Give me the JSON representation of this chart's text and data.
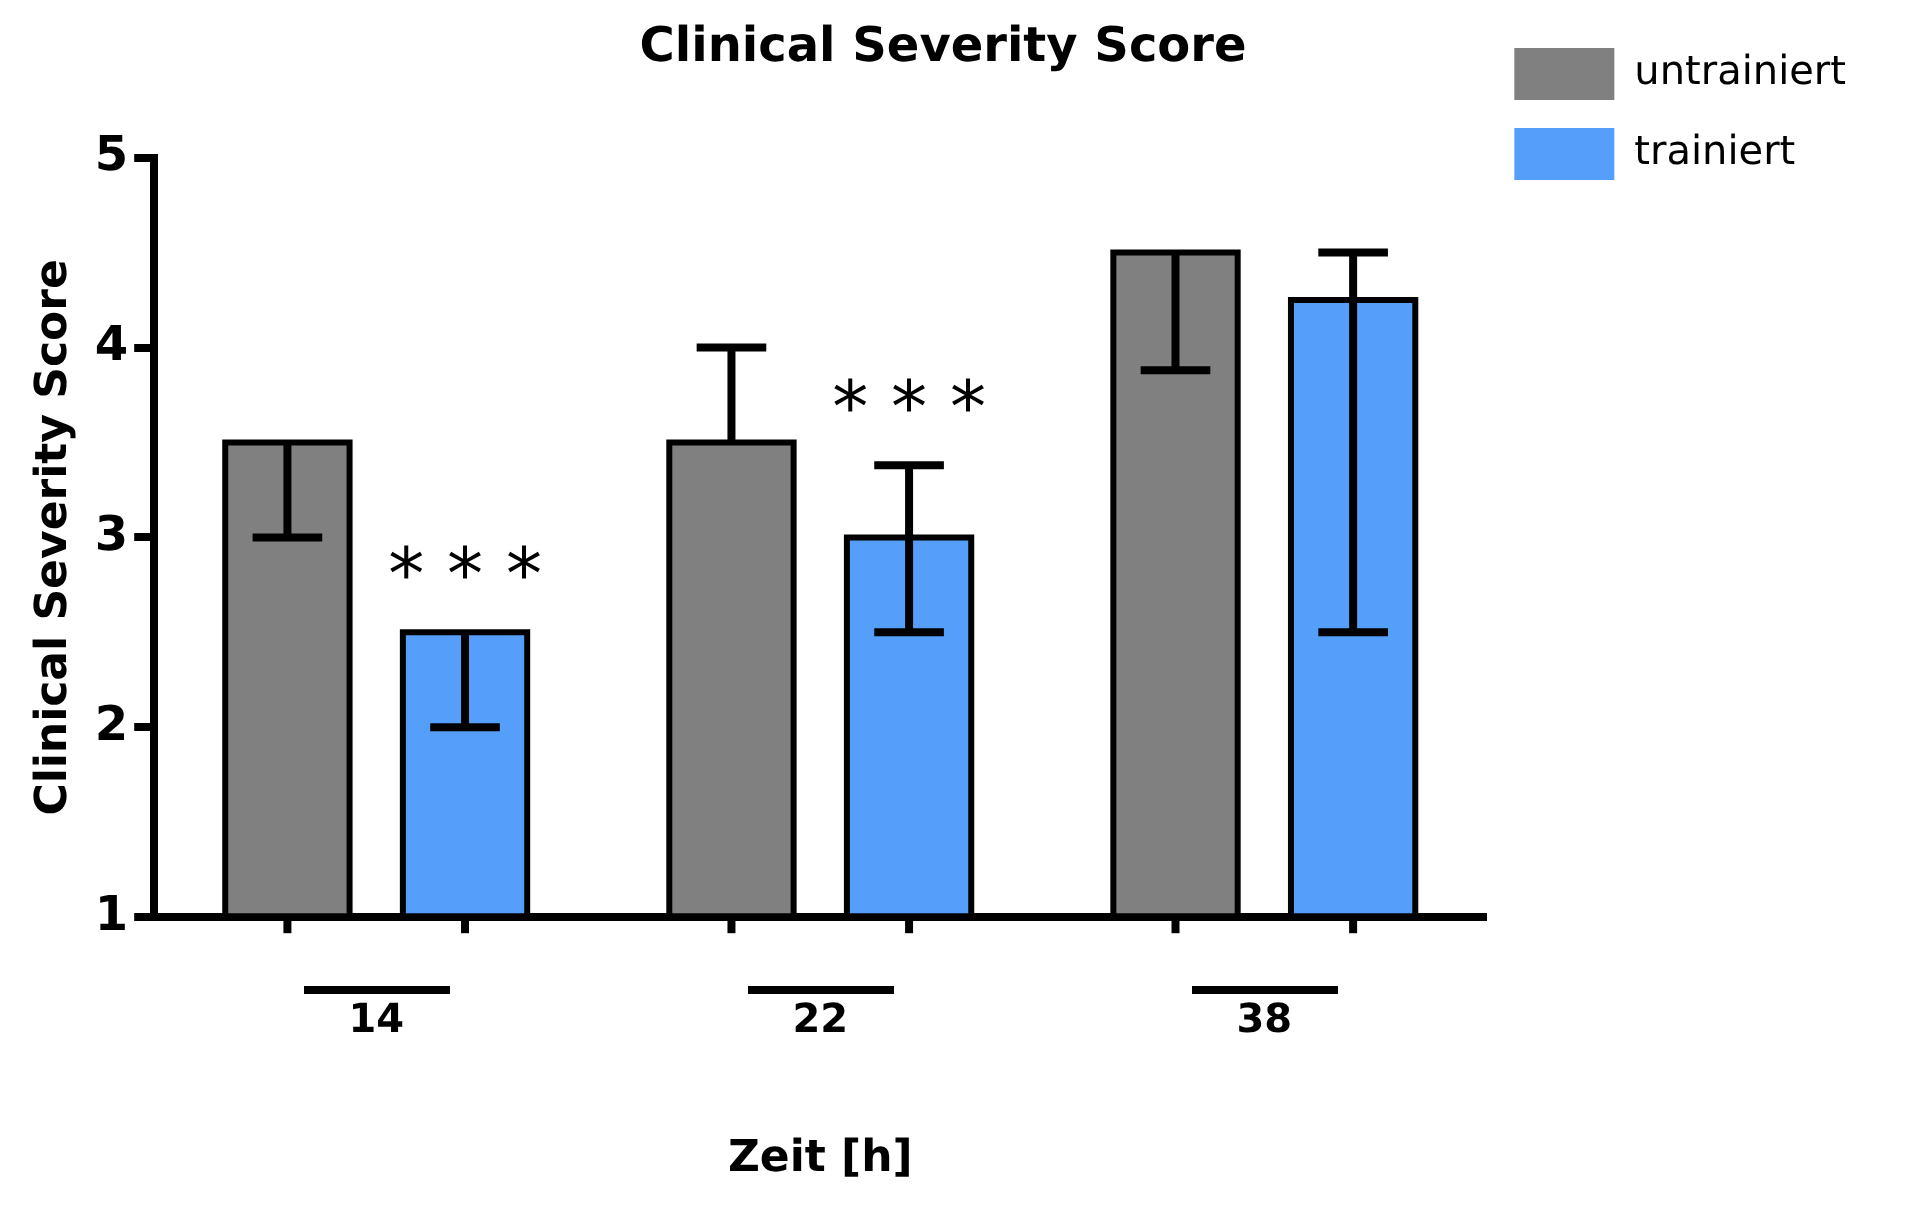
{
  "chart_data": {
    "type": "bar",
    "title": "Clinical Severity Score",
    "xlabel": "Zeit [h]",
    "ylabel": "Clinical Severity Score",
    "categories": [
      "14",
      "22",
      "38"
    ],
    "series": [
      {
        "name": "untrainiert",
        "color": "#808080",
        "values": [
          3.5,
          3.5,
          4.5
        ],
        "errors": [
          [
            3,
            3.5
          ],
          [
            3.5,
            4
          ],
          [
            3.88,
            4.5
          ]
        ]
      },
      {
        "name": "trainiert",
        "color": "#559ffb",
        "values": [
          2.5,
          3,
          4.25
        ],
        "errors": [
          [
            2,
            2.5
          ],
          [
            2.5,
            3.38
          ],
          [
            2.5,
            4.5
          ]
        ]
      }
    ],
    "ylim": [
      1,
      5
    ],
    "yticks": [
      1,
      2,
      3,
      4,
      5
    ],
    "grid": false,
    "legend": "top right",
    "annotations": [
      "* * *",
      "* * *"
    ]
  }
}
